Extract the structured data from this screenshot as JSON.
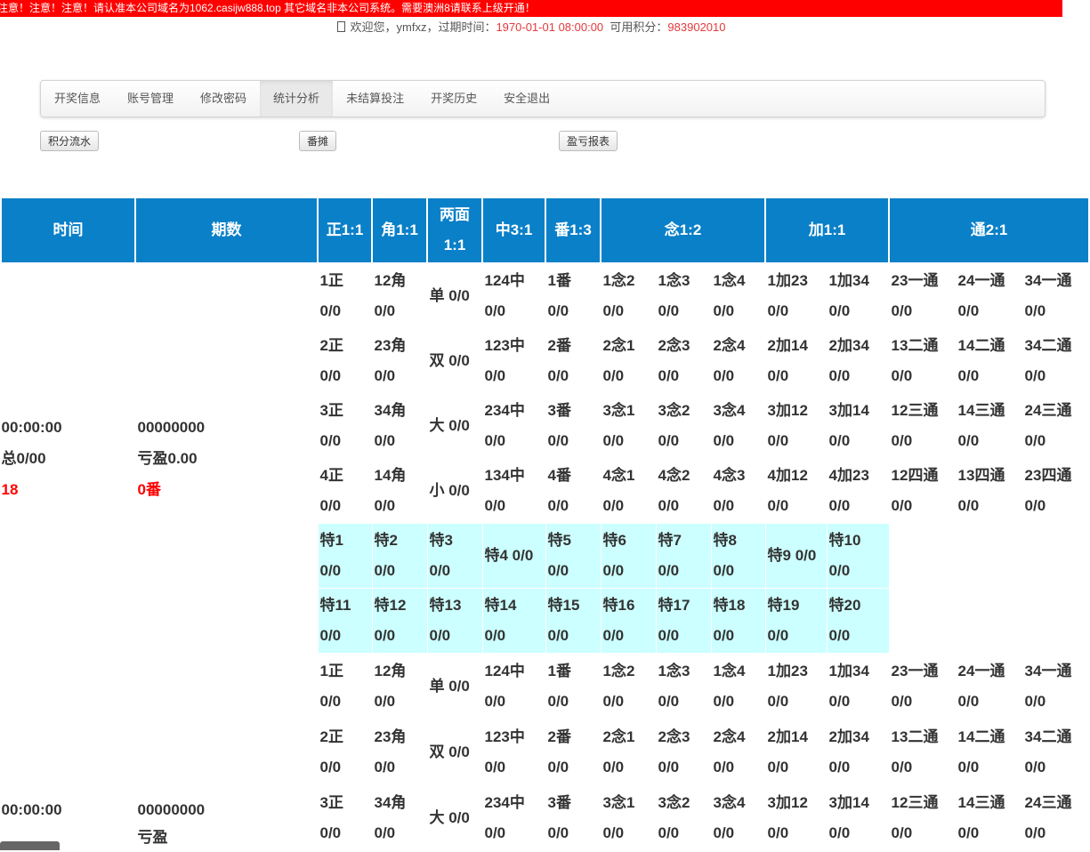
{
  "notice": "注意！注意！注意！请认准本公司域名为1062.casijw888.top 其它域名非本公司系统。需要澳洲8请联系上级开通！",
  "welcome": {
    "prefix": "欢迎您，ymfxz，过期时间：",
    "expire": "1970-01-01 08:00:00",
    "points_label": "可用积分：",
    "points": "983902010"
  },
  "nav": [
    "开奖信息",
    "账号管理",
    "修改密码",
    "统计分析",
    "未结算投注",
    "开奖历史",
    "安全退出"
  ],
  "nav_active": 3,
  "sub_buttons": [
    "积分流水",
    "番摊",
    "盈亏报表"
  ],
  "colors": {
    "header": "#0a80c8",
    "special_bg": "#ccffff",
    "notice": "#ff0000",
    "highlight": "#ff0000"
  },
  "table": {
    "headers": [
      "时间",
      "期数",
      "正1:1",
      "角1:1",
      "两面1:1",
      "中3:1",
      "番1:3",
      "念1:2",
      "加1:1",
      "通2:1"
    ],
    "rounds": [
      {
        "time": "00:00:00",
        "total": "总0/00",
        "count": "18",
        "issue": "00000000",
        "profit": "亏盈0.00",
        "fan": "0番"
      },
      {
        "time": "00:00:00",
        "total": "",
        "count": "",
        "issue": "00000000",
        "profit": "亏盈",
        "fan": ""
      }
    ],
    "main_rows": [
      {
        "zheng": [
          "1正",
          "0/0"
        ],
        "jiao": [
          "12角",
          "0/0"
        ],
        "lm": "单 0/0",
        "zhong": [
          "124中",
          "0/0"
        ],
        "fan": [
          "1番",
          "0/0"
        ],
        "nian": [
          [
            "1念2",
            "0/0"
          ],
          [
            "1念3",
            "0/0"
          ],
          [
            "1念4",
            "0/0"
          ]
        ],
        "jia": [
          [
            "1加23",
            "0/0"
          ],
          [
            "1加34",
            "0/0"
          ]
        ],
        "tong": [
          [
            "23一通",
            "0/0"
          ],
          [
            "24一通",
            "0/0"
          ],
          [
            "34一通",
            "0/0"
          ]
        ]
      },
      {
        "zheng": [
          "2正",
          "0/0"
        ],
        "jiao": [
          "23角",
          "0/0"
        ],
        "lm": "双 0/0",
        "zhong": [
          "123中",
          "0/0"
        ],
        "fan": [
          "2番",
          "0/0"
        ],
        "nian": [
          [
            "2念1",
            "0/0"
          ],
          [
            "2念3",
            "0/0"
          ],
          [
            "2念4",
            "0/0"
          ]
        ],
        "jia": [
          [
            "2加14",
            "0/0"
          ],
          [
            "2加34",
            "0/0"
          ]
        ],
        "tong": [
          [
            "13二通",
            "0/0"
          ],
          [
            "14二通",
            "0/0"
          ],
          [
            "34二通",
            "0/0"
          ]
        ]
      },
      {
        "zheng": [
          "3正",
          "0/0"
        ],
        "jiao": [
          "34角",
          "0/0"
        ],
        "lm": "大 0/0",
        "zhong": [
          "234中",
          "0/0"
        ],
        "fan": [
          "3番",
          "0/0"
        ],
        "nian": [
          [
            "3念1",
            "0/0"
          ],
          [
            "3念2",
            "0/0"
          ],
          [
            "3念4",
            "0/0"
          ]
        ],
        "jia": [
          [
            "3加12",
            "0/0"
          ],
          [
            "3加14",
            "0/0"
          ]
        ],
        "tong": [
          [
            "12三通",
            "0/0"
          ],
          [
            "14三通",
            "0/0"
          ],
          [
            "24三通",
            "0/0"
          ]
        ]
      },
      {
        "zheng": [
          "4正",
          "0/0"
        ],
        "jiao": [
          "14角",
          "0/0"
        ],
        "lm": "小 0/0",
        "zhong": [
          "134中",
          "0/0"
        ],
        "fan": [
          "4番",
          "0/0"
        ],
        "nian": [
          [
            "4念1",
            "0/0"
          ],
          [
            "4念2",
            "0/0"
          ],
          [
            "4念3",
            "0/0"
          ]
        ],
        "jia": [
          [
            "4加12",
            "0/0"
          ],
          [
            "4加23",
            "0/0"
          ]
        ],
        "tong": [
          [
            "12四通",
            "0/0"
          ],
          [
            "13四通",
            "0/0"
          ],
          [
            "23四通",
            "0/0"
          ]
        ]
      }
    ],
    "special_rows": [
      [
        [
          "特1",
          "0/0"
        ],
        [
          "特2",
          "0/0"
        ],
        [
          "特3",
          "0/0"
        ],
        [
          "特4 0/0"
        ],
        [
          "特5",
          "0/0"
        ],
        [
          "特6",
          "0/0"
        ],
        [
          "特7",
          "0/0"
        ],
        [
          "特8",
          "0/0"
        ],
        [
          "特9 0/0"
        ],
        [
          "特10",
          "0/0"
        ]
      ],
      [
        [
          "特11",
          "0/0"
        ],
        [
          "特12",
          "0/0"
        ],
        [
          "特13",
          "0/0"
        ],
        [
          "特14",
          "0/0"
        ],
        [
          "特15",
          "0/0"
        ],
        [
          "特16",
          "0/0"
        ],
        [
          "特17",
          "0/0"
        ],
        [
          "特18",
          "0/0"
        ],
        [
          "特19",
          "0/0"
        ],
        [
          "特20",
          "0/0"
        ]
      ]
    ]
  }
}
